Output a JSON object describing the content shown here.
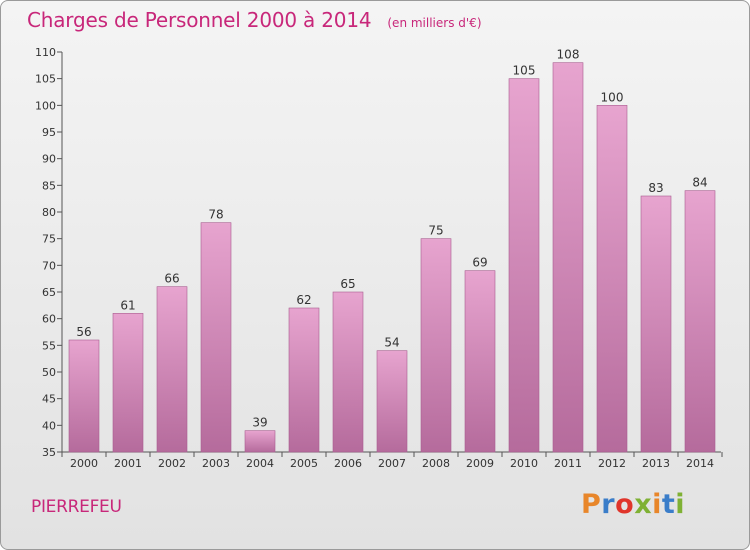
{
  "header": {
    "title": "Charges de Personnel 2000 à 2014",
    "unit": "(en milliers d'€)"
  },
  "footer": {
    "commune": "PIERREFEU",
    "logo_text": "Proxiti",
    "logo_colors": [
      "#e8862a",
      "#3a7dc9",
      "#e0352b",
      "#7fb134",
      "#e8862a",
      "#3a7dc9",
      "#7fb134"
    ]
  },
  "colors": {
    "bar_top": "#e7a4cf",
    "bar_bottom": "#b56b9c",
    "bar_edge": "#a95d8f",
    "title": "#c8277a"
  },
  "chart_data": {
    "type": "bar",
    "title": "Charges de Personnel 2000 à 2014",
    "subtitle": "(en milliers d'€)",
    "xlabel": "",
    "ylabel": "",
    "categories": [
      "2000",
      "2001",
      "2002",
      "2003",
      "2004",
      "2005",
      "2006",
      "2007",
      "2008",
      "2009",
      "2010",
      "2011",
      "2012",
      "2013",
      "2014"
    ],
    "values": [
      56,
      61,
      66,
      78,
      39,
      62,
      65,
      54,
      75,
      69,
      105,
      108,
      100,
      83,
      84
    ],
    "ylim": [
      35,
      110
    ],
    "yticks": [
      35,
      40,
      45,
      50,
      55,
      60,
      65,
      70,
      75,
      80,
      85,
      90,
      95,
      100,
      105,
      110
    ],
    "grid": false,
    "legend": "none"
  }
}
